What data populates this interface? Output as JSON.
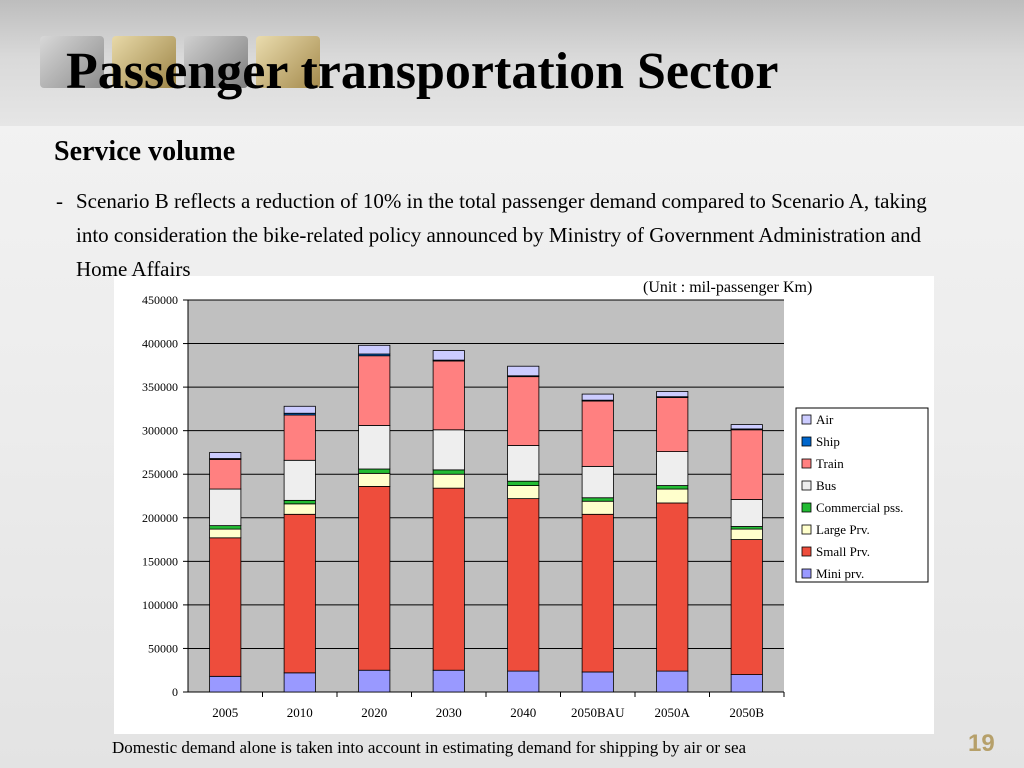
{
  "page": {
    "title": "Passenger transportation Sector",
    "subtitle": "Service volume",
    "bullet_marker": "-",
    "bullet_text": "Scenario B reflects a reduction of 10% in the total passenger demand compared to Scenario A, taking into consideration the bike-related policy announced by Ministry of Government Administration and Home Affairs",
    "unit_note": "(Unit : mil-passenger Km)",
    "footnote": "Domestic demand alone is taken into account in estimating demand for shipping by air or sea",
    "page_number": "19"
  },
  "chart_data": {
    "type": "bar",
    "stacked": true,
    "title": "",
    "xlabel": "",
    "ylabel": "",
    "ylim": [
      0,
      450000
    ],
    "yticks": [
      0,
      50000,
      100000,
      150000,
      200000,
      250000,
      300000,
      350000,
      400000,
      450000
    ],
    "grid": true,
    "legend_position": "right",
    "categories": [
      "2005",
      "2010",
      "2020",
      "2030",
      "2040",
      "2050BAU",
      "2050A",
      "2050B"
    ],
    "series": [
      {
        "name": "Mini prv.",
        "color": "#9999ff",
        "values": [
          18000,
          22000,
          25000,
          25000,
          24000,
          23000,
          24000,
          20000
        ]
      },
      {
        "name": "Small Prv.",
        "color": "#ee4d3c",
        "values": [
          159000,
          182000,
          211000,
          209000,
          198000,
          181000,
          193000,
          155000
        ]
      },
      {
        "name": "Large Prv.",
        "color": "#ffffcc",
        "values": [
          10000,
          12000,
          15000,
          16000,
          15000,
          15000,
          16000,
          12000
        ]
      },
      {
        "name": "Commercial pss.",
        "color": "#22bb33",
        "values": [
          4000,
          4000,
          5000,
          5000,
          5000,
          4000,
          4000,
          3000
        ]
      },
      {
        "name": "Bus",
        "color": "#eeeeee",
        "values": [
          42000,
          46000,
          50000,
          46000,
          41000,
          36000,
          39000,
          31000
        ]
      },
      {
        "name": "Train",
        "color": "#ff8080",
        "values": [
          34000,
          52000,
          80000,
          79000,
          79000,
          75000,
          62000,
          80000
        ]
      },
      {
        "name": "Ship",
        "color": "#0066cc",
        "values": [
          1000,
          2000,
          2000,
          1000,
          1000,
          1000,
          1000,
          1000
        ]
      },
      {
        "name": "Air",
        "color": "#ccccff",
        "values": [
          7000,
          8000,
          10000,
          11000,
          11000,
          7000,
          6000,
          5000
        ]
      }
    ]
  }
}
